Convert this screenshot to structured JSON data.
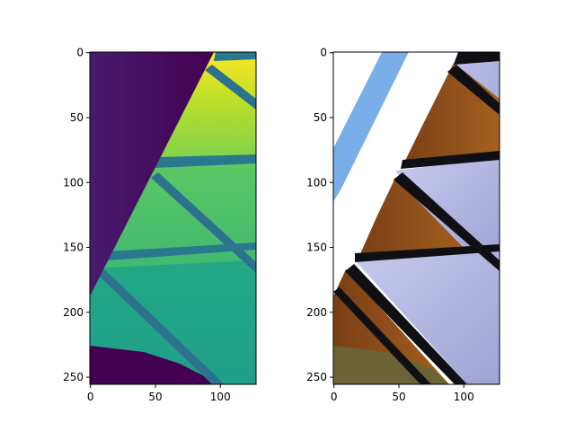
{
  "figure": {
    "background": "#ffffff"
  },
  "chart_data": [
    {
      "type": "heatmap",
      "description_visible": "",
      "colormap": "viridis",
      "xlim": [
        0,
        127
      ],
      "ylim": [
        255,
        0
      ],
      "x_ticks": [
        0,
        50,
        100
      ],
      "y_ticks": [
        0,
        50,
        100,
        150,
        200,
        250
      ],
      "x_tick_labels": [
        "0",
        "50",
        "100"
      ],
      "y_tick_labels": [
        "0",
        "50",
        "100",
        "150",
        "200",
        "250"
      ],
      "colors": {
        "dark": "#440154",
        "dark_purple_left": "#481a6c",
        "yellow": "#fde725",
        "yellow_green": "#b8de29",
        "green": "#5ec962",
        "teal_green": "#21a585",
        "teal": "#2a788e",
        "teal_dark": "#2c718e"
      }
    },
    {
      "type": "heatmap",
      "colormap": "rgb",
      "xlim": [
        0,
        127
      ],
      "ylim": [
        255,
        0
      ],
      "x_ticks": [
        0,
        50,
        100
      ],
      "y_ticks": [
        0,
        50,
        100,
        150,
        200,
        250
      ],
      "x_tick_labels": [
        "0",
        "50",
        "100"
      ],
      "y_tick_labels": [
        "0",
        "50",
        "100",
        "150",
        "200",
        "250"
      ],
      "colors": {
        "white": "#ffffff",
        "sky_blue": "#79aee8",
        "lavender": "#a9abd6",
        "lavender_light": "#c4c6ea",
        "brown": "#8a4a1c",
        "brown_light": "#a85e22",
        "black": "#101014",
        "olive": "#6b6236"
      }
    }
  ]
}
